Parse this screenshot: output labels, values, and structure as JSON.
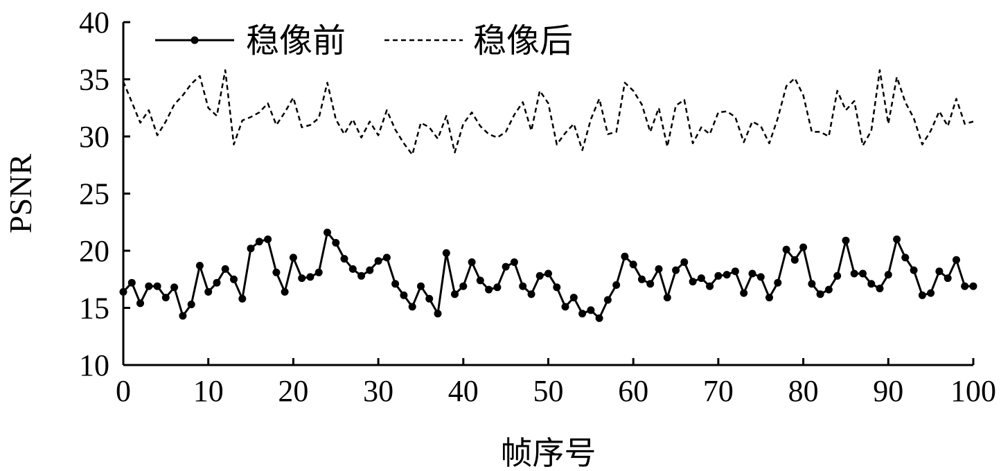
{
  "chart_data": {
    "type": "line",
    "title": "",
    "xlabel": "帧序号",
    "ylabel": "PSNR",
    "xlim": [
      0,
      100
    ],
    "ylim": [
      10,
      40
    ],
    "xticks": [
      0,
      10,
      20,
      30,
      40,
      50,
      60,
      70,
      80,
      90,
      100
    ],
    "yticks": [
      10,
      15,
      20,
      25,
      30,
      35,
      40
    ],
    "grid": false,
    "legend_position": "top-left",
    "series": [
      {
        "name": "稳像前",
        "style": "solid",
        "marker": "circle",
        "color": "#000000",
        "x": [
          0,
          1,
          2,
          3,
          4,
          5,
          6,
          7,
          8,
          9,
          10,
          11,
          12,
          13,
          14,
          15,
          16,
          17,
          18,
          19,
          20,
          21,
          22,
          23,
          24,
          25,
          26,
          27,
          28,
          29,
          30,
          31,
          32,
          33,
          34,
          35,
          36,
          37,
          38,
          39,
          40,
          41,
          42,
          43,
          44,
          45,
          46,
          47,
          48,
          49,
          50,
          51,
          52,
          53,
          54,
          55,
          56,
          57,
          58,
          59,
          60,
          61,
          62,
          63,
          64,
          65,
          66,
          67,
          68,
          69,
          70,
          71,
          72,
          73,
          74,
          75,
          76,
          77,
          78,
          79,
          80,
          81,
          82,
          83,
          84,
          85,
          86,
          87,
          88,
          89,
          90,
          91,
          92,
          93,
          94,
          95,
          96,
          97,
          98,
          99,
          100
        ],
        "y": [
          16.4,
          17.2,
          15.4,
          16.9,
          16.9,
          15.9,
          16.8,
          14.3,
          15.3,
          18.7,
          16.4,
          17.2,
          18.4,
          17.5,
          15.8,
          20.2,
          20.8,
          21.0,
          18.1,
          16.4,
          19.4,
          17.6,
          17.7,
          18.1,
          21.6,
          20.7,
          19.3,
          18.4,
          17.8,
          18.3,
          19.1,
          19.4,
          17.1,
          16.1,
          15.1,
          16.9,
          15.8,
          14.5,
          19.8,
          16.2,
          16.9,
          19.0,
          17.4,
          16.6,
          16.8,
          18.6,
          19.0,
          16.9,
          16.2,
          17.8,
          18.0,
          16.8,
          15.1,
          15.9,
          14.5,
          14.8,
          14.1,
          15.7,
          17.0,
          19.5,
          18.8,
          17.5,
          17.1,
          18.4,
          15.9,
          18.3,
          19.0,
          17.3,
          17.6,
          16.9,
          17.8,
          17.9,
          18.2,
          16.3,
          18.0,
          17.7,
          15.9,
          17.2,
          20.1,
          19.2,
          20.3,
          17.1,
          16.2,
          16.6,
          17.8,
          20.9,
          18.0,
          18.0,
          17.1,
          16.7,
          17.9,
          21.0,
          19.4,
          18.3,
          16.1,
          16.3,
          18.2,
          17.6,
          19.2,
          16.9,
          16.9
        ]
      },
      {
        "name": "稳像后",
        "style": "dashed",
        "marker": "none",
        "color": "#000000",
        "x": [
          0,
          1,
          2,
          3,
          4,
          5,
          6,
          7,
          8,
          9,
          10,
          11,
          12,
          13,
          14,
          15,
          16,
          17,
          18,
          19,
          20,
          21,
          22,
          23,
          24,
          25,
          26,
          27,
          28,
          29,
          30,
          31,
          32,
          33,
          34,
          35,
          36,
          37,
          38,
          39,
          40,
          41,
          42,
          43,
          44,
          45,
          46,
          47,
          48,
          49,
          50,
          51,
          52,
          53,
          54,
          55,
          56,
          57,
          58,
          59,
          60,
          61,
          62,
          63,
          64,
          65,
          66,
          67,
          68,
          69,
          70,
          71,
          72,
          73,
          74,
          75,
          76,
          77,
          78,
          79,
          80,
          81,
          82,
          83,
          84,
          85,
          86,
          87,
          88,
          89,
          90,
          91,
          92,
          93,
          94,
          95,
          96,
          97,
          98,
          99,
          100
        ],
        "y": [
          34.8,
          33.0,
          31.2,
          32.3,
          30.1,
          31.3,
          32.8,
          33.6,
          34.6,
          35.3,
          32.5,
          31.8,
          35.8,
          29.3,
          31.4,
          31.7,
          32.1,
          32.9,
          31.0,
          32.1,
          33.4,
          30.8,
          31.0,
          31.6,
          34.7,
          31.5,
          30.2,
          31.5,
          29.9,
          31.3,
          30.1,
          32.3,
          30.6,
          29.4,
          28.4,
          31.2,
          30.8,
          29.8,
          31.8,
          28.6,
          31.1,
          32.1,
          30.9,
          30.2,
          29.9,
          30.4,
          31.9,
          33.0,
          30.5,
          34.0,
          32.9,
          29.3,
          30.3,
          31.1,
          28.8,
          31.5,
          33.3,
          30.2,
          30.4,
          34.7,
          34.0,
          32.8,
          30.4,
          32.5,
          29.1,
          32.7,
          33.2,
          29.4,
          30.8,
          30.2,
          32.1,
          32.2,
          31.7,
          29.5,
          31.3,
          30.9,
          29.4,
          31.6,
          34.4,
          35.1,
          33.6,
          30.4,
          30.4,
          30.0,
          34.0,
          32.3,
          33.1,
          29.2,
          30.5,
          35.8,
          31.1,
          35.2,
          33.0,
          31.6,
          29.3,
          30.5,
          32.2,
          30.9,
          33.3,
          31.1,
          31.3
        ]
      }
    ]
  }
}
